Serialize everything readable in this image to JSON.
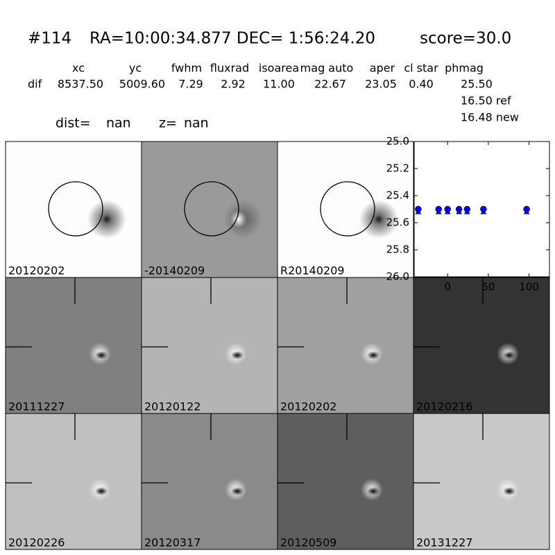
{
  "header": {
    "id": "#114",
    "coords": "RA=10:00:34.877 DEC= 1:56:24.20",
    "score": "score=30.0"
  },
  "table": {
    "columns": [
      "xc",
      "yc",
      "fwhm",
      "fluxrad",
      "isoarea",
      "mag auto",
      "aper",
      "cl star",
      "phmag"
    ],
    "row_label": "dif",
    "row": [
      "8537.50",
      "5009.60",
      "7.29",
      "2.92",
      "11.00",
      "22.67",
      "23.05",
      "0.40",
      "25.50"
    ],
    "extra": [
      "16.50 ref",
      "16.48 new"
    ]
  },
  "dist": {
    "dist_label": "dist=",
    "dist_value": "nan",
    "z_label": "z=",
    "z_value": "nan"
  },
  "panels": [
    {
      "label": "20120202",
      "label_color": "#000000"
    },
    {
      "label": "-20140209",
      "label_color": "#000000"
    },
    {
      "label": "R20140209",
      "label_color": "#000000"
    },
    {
      "label": "20111227",
      "label_color": "#000000"
    },
    {
      "label": "20120122",
      "label_color": "#000000"
    },
    {
      "label": "20120202",
      "label_color": "#ff0000"
    },
    {
      "label": "20120216",
      "label_color": "#000000"
    },
    {
      "label": "20120226",
      "label_color": "#000000"
    },
    {
      "label": "20120317",
      "label_color": "#000000"
    },
    {
      "label": "20120509",
      "label_color": "#000000"
    },
    {
      "label": "20131227",
      "label_color": "#000000"
    }
  ],
  "chart_data": {
    "type": "scatter",
    "x": [
      -36,
      -11,
      0,
      14,
      24,
      44,
      97
    ],
    "series": [
      {
        "marker": "circle",
        "color": "#0000ff",
        "values": [
          25.5,
          25.5,
          25.5,
          25.5,
          25.5,
          25.5,
          25.5
        ]
      },
      {
        "marker": "triangle",
        "color": "#0000ff",
        "values": [
          25.52,
          25.52,
          25.52,
          25.52,
          25.52,
          25.52,
          25.52
        ]
      }
    ],
    "xlim": [
      -41,
      125
    ],
    "ylim": [
      25.0,
      26.0
    ],
    "inverted_y": true,
    "xticks": [
      0,
      50,
      100
    ],
    "yticks": [
      {
        "value": 25.0,
        "label": "25.0"
      },
      {
        "value": 25.2,
        "label": "25.2"
      },
      {
        "value": 25.4,
        "label": "25.4"
      },
      {
        "value": 25.6,
        "label": "25.6"
      },
      {
        "value": 25.8,
        "label": "25.8"
      },
      {
        "value": 26.0,
        "label": "26.0"
      }
    ]
  }
}
